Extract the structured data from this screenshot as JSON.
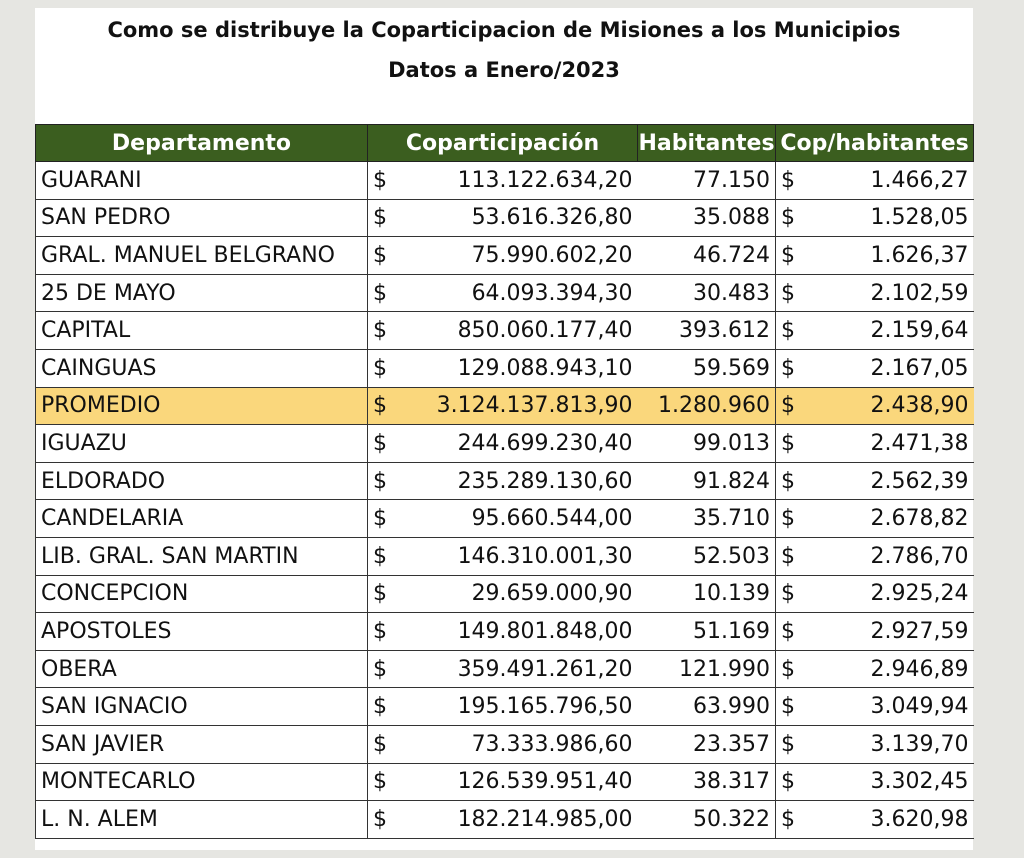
{
  "header": {
    "title": "Como se distribuye la Coparticipacion de Misiones a los Municipios",
    "subtitle": "Datos a Enero/2023"
  },
  "table": {
    "columns": [
      "Departamento",
      "Coparticipación",
      "Habitantes",
      "Cop/habitantes"
    ],
    "currency": "$",
    "rows": [
      [
        "GUARANI",
        "113.122.634,20",
        "77.150",
        "1.466,27"
      ],
      [
        "SAN PEDRO",
        "53.616.326,80",
        "35.088",
        "1.528,05"
      ],
      [
        "GRAL. MANUEL BELGRANO",
        "75.990.602,20",
        "46.724",
        "1.626,37"
      ],
      [
        "25 DE MAYO",
        "64.093.394,30",
        "30.483",
        "2.102,59"
      ],
      [
        "CAPITAL",
        "850.060.177,40",
        "393.612",
        "2.159,64"
      ],
      [
        "CAINGUAS",
        "129.088.943,10",
        "59.569",
        "2.167,05"
      ],
      [
        "PROMEDIO",
        "3.124.137.813,90",
        "1.280.960",
        "2.438,90"
      ],
      [
        "IGUAZU",
        "244.699.230,40",
        "99.013",
        "2.471,38"
      ],
      [
        "ELDORADO",
        "235.289.130,60",
        "91.824",
        "2.562,39"
      ],
      [
        "CANDELARIA",
        "95.660.544,00",
        "35.710",
        "2.678,82"
      ],
      [
        "LIB. GRAL. SAN MARTIN",
        "146.310.001,30",
        "52.503",
        "2.786,70"
      ],
      [
        "CONCEPCION",
        "29.659.000,90",
        "10.139",
        "2.925,24"
      ],
      [
        "APOSTOLES",
        "149.801.848,00",
        "51.169",
        "2.927,59"
      ],
      [
        "OBERA",
        "359.491.261,20",
        "121.990",
        "2.946,89"
      ],
      [
        "SAN IGNACIO",
        "195.165.796,50",
        "63.990",
        "3.049,94"
      ],
      [
        "SAN JAVIER",
        "73.333.986,60",
        "23.357",
        "3.139,70"
      ],
      [
        "MONTECARLO",
        "126.539.951,40",
        "38.317",
        "3.302,45"
      ],
      [
        "L. N. ALEM",
        "182.214.985,00",
        "50.322",
        "3.620,98"
      ]
    ]
  }
}
